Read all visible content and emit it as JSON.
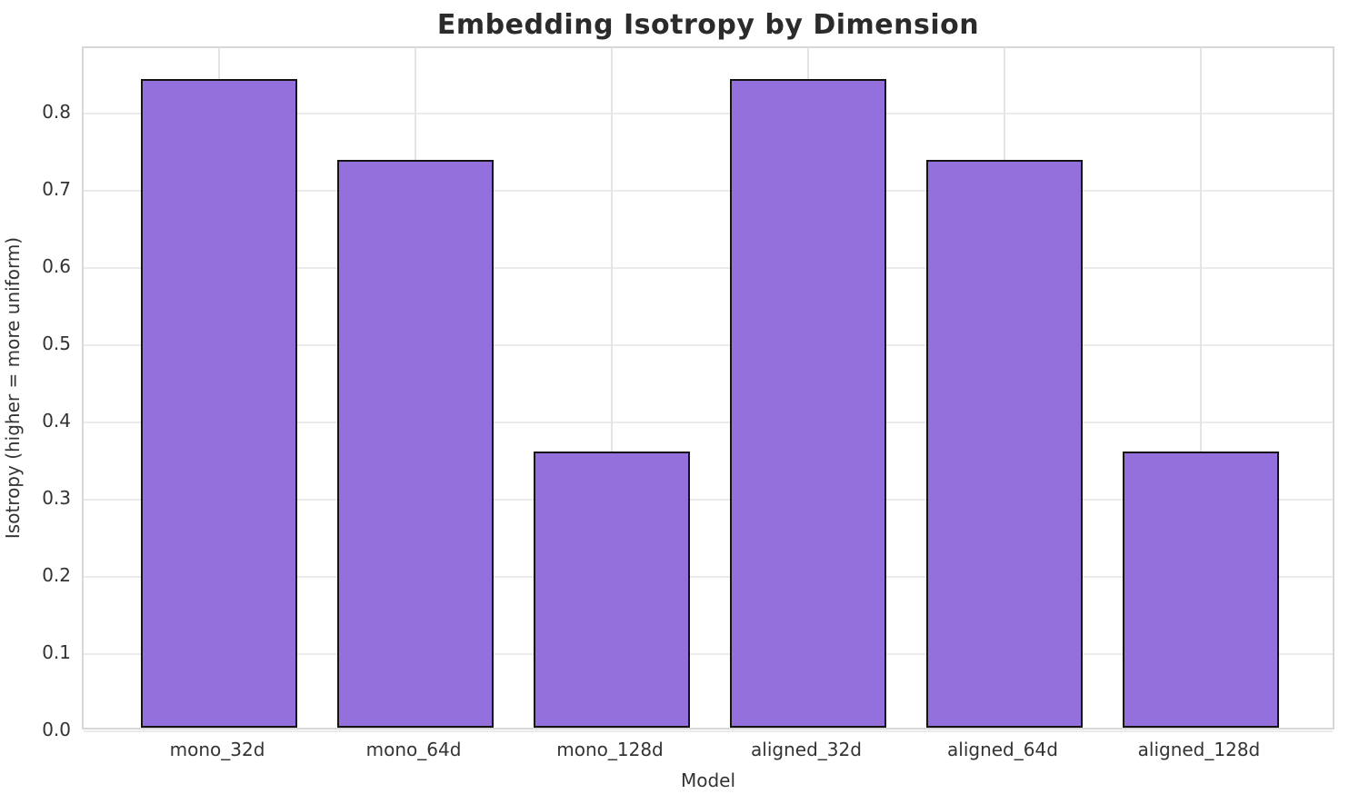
{
  "chart_data": {
    "type": "bar",
    "title": "Embedding Isotropy by Dimension",
    "xlabel": "Model",
    "ylabel": "Isotropy (higher = more uniform)",
    "categories": [
      "mono_32d",
      "mono_64d",
      "mono_128d",
      "aligned_32d",
      "aligned_64d",
      "aligned_128d"
    ],
    "values": [
      0.84,
      0.736,
      0.358,
      0.84,
      0.736,
      0.358
    ],
    "y_ticks": [
      0.0,
      0.1,
      0.2,
      0.3,
      0.4,
      0.5,
      0.6,
      0.7,
      0.8
    ],
    "ylim": [
      0,
      0.885
    ],
    "bar_width_fraction": 0.8,
    "x_edge_margin": 0.69,
    "grid": "both",
    "legend": "none",
    "colors": {
      "bar_fill": "#9370DB",
      "bar_edge": "#141414",
      "h_grid": "#ebebeb",
      "v_grid": "#e4e4e4",
      "spine": "#d7d7d7",
      "tick_text": "#333333",
      "title_text": "#2b2b2b",
      "background": "#ffffff"
    }
  }
}
